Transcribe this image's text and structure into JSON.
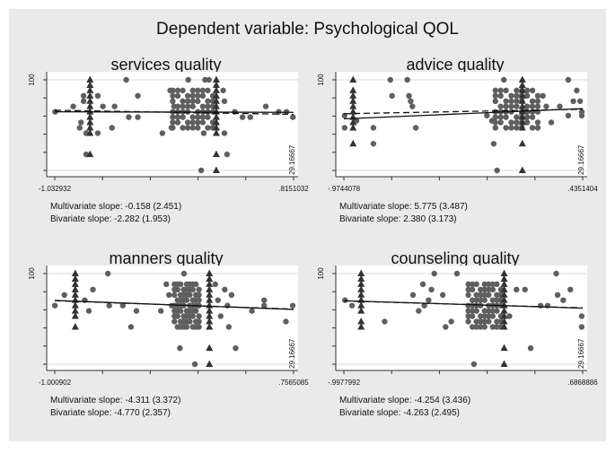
{
  "title": "Dependent variable: Psychological QOL",
  "chart_data": [
    {
      "type": "scatter",
      "title": "services quality",
      "xlim": [
        -1.032932,
        0.8151032
      ],
      "xtick_labels": [
        "-1.032932",
        ".8151032"
      ],
      "ylim": [
        29.16667,
        100
      ],
      "ytick_label_top": "100",
      "ytick_label_bottom": "29.16667",
      "multivariate": "Multivariate slope: -0.158 (2.451)",
      "bivariate": "Bivariate slope: -2.282 (1.953)",
      "fit_solid": [
        75.0,
        74.6
      ],
      "fit_dashed": [
        76.2,
        73.0
      ],
      "triangles": [
        {
          "x": -0.76,
          "y": [
            100,
            95.8,
            91.7,
            87.5,
            83.3,
            79.2,
            75,
            70.8,
            66.7,
            62.5,
            58.3,
            41.7
          ]
        },
        {
          "x": 0.217,
          "y": [
            100,
            95.8,
            91.7,
            87.5,
            83.3,
            79.2,
            75,
            70.8,
            66.7,
            62.5,
            58.3,
            41.7,
            29.17
          ]
        }
      ],
      "cluster": {
        "x": [
          -0.12,
          0.19
        ],
        "y": [
          62.5,
          91.7
        ]
      },
      "circles": [
        [
          -1.03,
          75
        ],
        [
          -0.89,
          79.2
        ],
        [
          -0.83,
          66.7
        ],
        [
          -0.81,
          83.3
        ],
        [
          -0.81,
          87.5
        ],
        [
          -0.79,
          58.3
        ],
        [
          -0.84,
          62.5
        ],
        [
          -0.79,
          41.7
        ],
        [
          -0.7,
          87.5
        ],
        [
          -0.7,
          58.3
        ],
        [
          -0.66,
          79.2
        ],
        [
          -0.59,
          62.5
        ],
        [
          -0.57,
          79.2
        ],
        [
          -0.48,
          100
        ],
        [
          -0.46,
          70.8
        ],
        [
          -0.39,
          87.5
        ],
        [
          -0.39,
          70.8
        ],
        [
          -0.2,
          58.3
        ],
        [
          -0.14,
          91.7
        ],
        [
          -0.13,
          62.5
        ],
        [
          -0.11,
          79.2
        ],
        [
          0.0,
          100
        ],
        [
          0.1,
          29.17
        ],
        [
          0.13,
          100
        ],
        [
          0.16,
          100
        ],
        [
          0.12,
          58.3
        ],
        [
          0.27,
          91.7
        ],
        [
          0.28,
          83.3
        ],
        [
          0.28,
          58.3
        ],
        [
          0.3,
          41.7
        ],
        [
          0.36,
          75
        ],
        [
          0.42,
          70.8
        ],
        [
          0.48,
          70.8
        ],
        [
          0.6,
          79.2
        ],
        [
          0.7,
          75
        ],
        [
          0.76,
          75
        ],
        [
          0.81,
          70.8
        ]
      ]
    },
    {
      "type": "scatter",
      "title": "advice quality",
      "xlim": [
        -0.9744078,
        0.4351404
      ],
      "xtick_labels": [
        "-.9744078",
        ".4351404"
      ],
      "ylim": [
        29.16667,
        100
      ],
      "ytick_label_top": "100",
      "ytick_label_bottom": "29.16667",
      "multivariate": "Multivariate slope: 5.775 (3.487)",
      "bivariate": "Bivariate slope: 2.380 (3.173)",
      "fit_solid": [
        69.5,
        77.5
      ],
      "fit_dashed": [
        73.5,
        77.0
      ],
      "triangles": [
        {
          "x": -0.92,
          "y": [
            100,
            91.7,
            87.5,
            83.3,
            79.2,
            75,
            70.8,
            66.7,
            62.5,
            50
          ]
        },
        {
          "x": 0.079,
          "y": [
            100,
            95.8,
            91.7,
            87.5,
            83.3,
            79.2,
            75,
            70.8,
            66.7,
            62.5,
            50,
            29.17
          ]
        }
      ],
      "cluster": {
        "x": [
          -0.08,
          0.17
        ],
        "y": [
          62.5,
          91.7
        ]
      },
      "circles": [
        [
          -0.97,
          72
        ],
        [
          -0.97,
          62.5
        ],
        [
          -0.9,
          68
        ],
        [
          -0.8,
          62.5
        ],
        [
          -0.8,
          50
        ],
        [
          -0.7,
          100
        ],
        [
          -0.69,
          87.5
        ],
        [
          -0.6,
          100
        ],
        [
          -0.58,
          83.3
        ],
        [
          -0.59,
          87.5
        ],
        [
          -0.57,
          79.2
        ],
        [
          -0.55,
          62.5
        ],
        [
          -0.13,
          72
        ],
        [
          -0.1,
          68
        ],
        [
          -0.09,
          50
        ],
        [
          -0.07,
          29.17
        ],
        [
          -0.03,
          100
        ],
        [
          0.2,
          87.5
        ],
        [
          0.22,
          79.2
        ],
        [
          0.25,
          66.7
        ],
        [
          0.3,
          79.2
        ],
        [
          0.35,
          100
        ],
        [
          0.35,
          72
        ],
        [
          0.4,
          91.7
        ],
        [
          0.38,
          83.3
        ],
        [
          0.42,
          83.3
        ],
        [
          0.43,
          75
        ],
        [
          0.43,
          72
        ]
      ]
    },
    {
      "type": "scatter",
      "title": "manners quality",
      "xlim": [
        -1.000902,
        0.7565085
      ],
      "xtick_labels": [
        "-1.000902",
        ".7565085"
      ],
      "ylim": [
        29.16667,
        100
      ],
      "ytick_label_top": "100",
      "ytick_label_bottom": "29.16667",
      "multivariate": "Multivariate slope: -4.311 (3.372)",
      "bivariate": "Bivariate slope: -4.770 (2.357)",
      "fit_solid": [
        79.0,
        72.0
      ],
      "fit_dashed": [
        78.8,
        72.2
      ],
      "triangles": [
        {
          "x": -0.85,
          "y": [
            100,
            95.8,
            91.7,
            87.5,
            83.3,
            79.2,
            75,
            70.8,
            66.7,
            58.3
          ]
        },
        {
          "x": 0.137,
          "y": [
            100,
            95.8,
            91.7,
            87.5,
            83.3,
            79.2,
            75,
            70.8,
            66.7,
            62.5,
            58.3,
            41.7,
            29.17
          ]
        }
      ],
      "cluster": {
        "x": [
          -0.12,
          0.06
        ],
        "y": [
          58.3,
          91.7
        ]
      },
      "circles": [
        [
          -1.0,
          75
        ],
        [
          -0.93,
          83.3
        ],
        [
          -0.78,
          79.2
        ],
        [
          -0.75,
          70.8
        ],
        [
          -0.72,
          87.5
        ],
        [
          -0.61,
          100
        ],
        [
          -0.6,
          75
        ],
        [
          -0.5,
          75
        ],
        [
          -0.44,
          58.3
        ],
        [
          -0.4,
          70.8
        ],
        [
          -0.22,
          70.8
        ],
        [
          -0.18,
          91.7
        ],
        [
          -0.16,
          83.3
        ],
        [
          -0.14,
          75
        ],
        [
          -0.05,
          100
        ],
        [
          -0.08,
          41.7
        ],
        [
          0.03,
          29.17
        ],
        [
          0.18,
          91.7
        ],
        [
          0.2,
          79.2
        ],
        [
          0.22,
          66.7
        ],
        [
          0.25,
          87.5
        ],
        [
          0.27,
          75
        ],
        [
          0.28,
          58.3
        ],
        [
          0.3,
          83.3
        ],
        [
          0.33,
          41.7
        ],
        [
          0.45,
          70.8
        ],
        [
          0.54,
          79.2
        ],
        [
          0.54,
          75
        ],
        [
          0.7,
          62.5
        ],
        [
          0.75,
          75
        ]
      ]
    },
    {
      "type": "scatter",
      "title": "counseling quality",
      "xlim": [
        -0.9977992,
        0.6868886
      ],
      "xtick_labels": [
        "-.9977992",
        ".6868886"
      ],
      "ylim": [
        29.16667,
        100
      ],
      "ytick_label_top": "100",
      "ytick_label_bottom": "29.16667",
      "multivariate": "Multivariate slope: -4.254 (3.436)",
      "bivariate": "Bivariate slope: -4.263 (2.495)",
      "fit_solid": [
        78.8,
        73.0
      ],
      "fit_dashed": [
        78.6,
        73.2
      ],
      "triangles": [
        {
          "x": -0.876,
          "y": [
            100,
            95.8,
            91.7,
            87.5,
            83.3,
            79.2,
            75,
            70.8,
            62.5,
            58.3
          ]
        },
        {
          "x": 0.133,
          "y": [
            100,
            95.8,
            91.7,
            87.5,
            83.3,
            79.2,
            75,
            70.8,
            66.7,
            62.5,
            58.3,
            41.7,
            29.17
          ]
        }
      ],
      "cluster": {
        "x": [
          -0.12,
          0.11
        ],
        "y": [
          58.3,
          91.7
        ]
      },
      "circles": [
        [
          -0.99,
          79.2
        ],
        [
          -0.94,
          75
        ],
        [
          -0.71,
          62.5
        ],
        [
          -0.51,
          83.3
        ],
        [
          -0.47,
          70.8
        ],
        [
          -0.44,
          91.7
        ],
        [
          -0.43,
          75
        ],
        [
          -0.4,
          79.2
        ],
        [
          -0.38,
          87.5
        ],
        [
          -0.36,
          100
        ],
        [
          -0.3,
          83.3
        ],
        [
          -0.28,
          58.3
        ],
        [
          -0.24,
          62.5
        ],
        [
          -0.2,
          100
        ],
        [
          -0.08,
          29.17
        ],
        [
          0.17,
          66.7
        ],
        [
          0.22,
          87.5
        ],
        [
          0.28,
          87.5
        ],
        [
          0.32,
          41.7
        ],
        [
          0.39,
          75
        ],
        [
          0.44,
          75
        ],
        [
          0.5,
          100
        ],
        [
          0.51,
          83.3
        ],
        [
          0.55,
          79.2
        ],
        [
          0.6,
          87.5
        ],
        [
          0.68,
          66.7
        ],
        [
          0.68,
          58.3
        ]
      ]
    }
  ]
}
